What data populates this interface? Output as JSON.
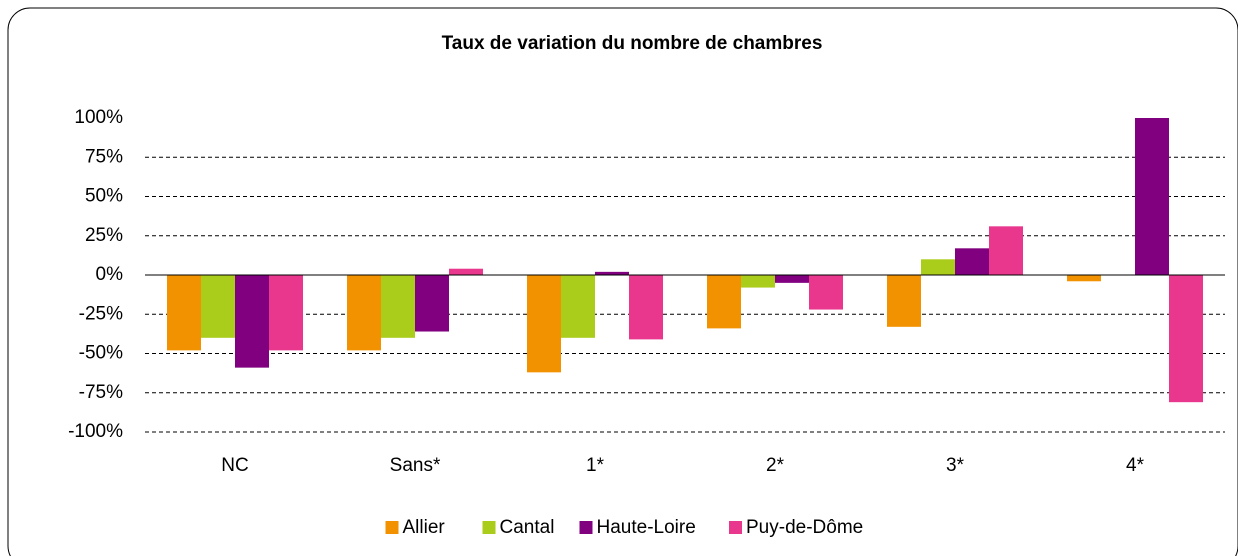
{
  "chart_data": {
    "type": "bar",
    "title": "Taux de variation du nombre de chambres",
    "categories": [
      "NC",
      "Sans*",
      "1*",
      "2*",
      "3*",
      "4*"
    ],
    "series": [
      {
        "name": "Allier",
        "color": "#f39200",
        "values": [
          -48,
          -48,
          -62,
          -34,
          -33,
          -4
        ]
      },
      {
        "name": "Cantal",
        "color": "#aacc1b",
        "values": [
          -40,
          -40,
          -40,
          -8,
          10,
          0
        ]
      },
      {
        "name": "Haute-Loire",
        "color": "#80007f",
        "values": [
          -59,
          -36,
          2,
          -5,
          17,
          100
        ]
      },
      {
        "name": "Puy-de-Dôme",
        "color": "#e8378c",
        "values": [
          -48,
          4,
          -41,
          -22,
          31,
          -81
        ]
      }
    ],
    "ylim": [
      -100,
      100
    ],
    "yticks": [
      {
        "value": -100,
        "label": "-100%"
      },
      {
        "value": -75,
        "label": "-75%"
      },
      {
        "value": -50,
        "label": "-50%"
      },
      {
        "value": -25,
        "label": "-25%"
      },
      {
        "value": 0,
        "label": "0%"
      },
      {
        "value": 25,
        "label": "25%"
      },
      {
        "value": 50,
        "label": "50%"
      },
      {
        "value": 75,
        "label": "75%"
      },
      {
        "value": 100,
        "label": "100%"
      }
    ],
    "grid": true,
    "legend": "bottom"
  }
}
